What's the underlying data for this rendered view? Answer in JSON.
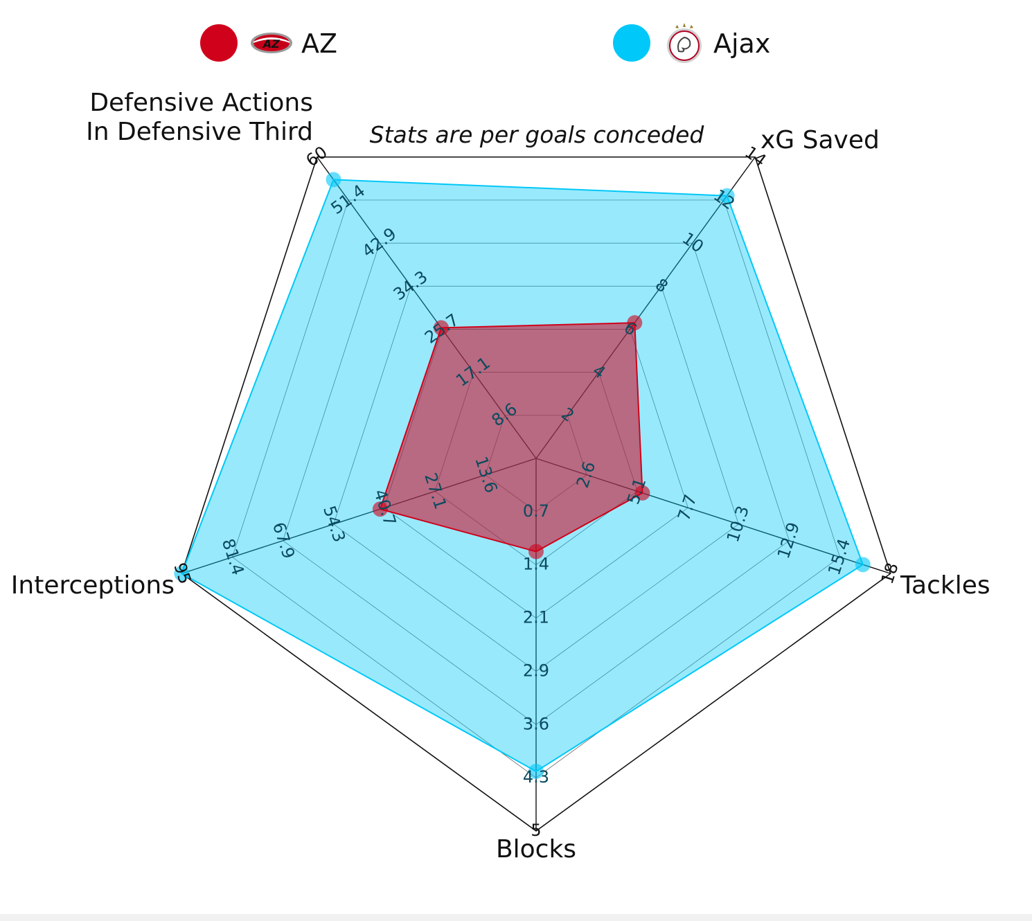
{
  "legend": {
    "team_a": {
      "name": "AZ",
      "color": "#d0021b",
      "icon": "az-alkmaar-logo-icon"
    },
    "team_b": {
      "name": "Ajax",
      "color": "#00c8f8",
      "icon": "ajax-logo-icon"
    }
  },
  "chart_data": {
    "type": "radar",
    "subtitle": "Stats are per goals conceded",
    "axes": [
      {
        "label_lines": [
          "Defensive Actions",
          "In Defensive Third"
        ],
        "max": 60,
        "ticks": [
          "8.6",
          "17.1",
          "25.7",
          "34.3",
          "42.9",
          "51.4",
          "60"
        ]
      },
      {
        "label_lines": [
          "xG Saved"
        ],
        "max": 14,
        "ticks": [
          "2",
          "4",
          "6",
          "8",
          "10",
          "12",
          "14"
        ]
      },
      {
        "label_lines": [
          "Tackles"
        ],
        "max": 18,
        "ticks": [
          "2.6",
          "5.1",
          "7.7",
          "10.3",
          "12.9",
          "15.4",
          "18"
        ]
      },
      {
        "label_lines": [
          "Blocks"
        ],
        "max": 5,
        "ticks": [
          "0.7",
          "1.4",
          "2.1",
          "2.9",
          "3.6",
          "4.3",
          "5"
        ]
      },
      {
        "label_lines": [
          "Interceptions"
        ],
        "max": 95,
        "ticks": [
          "13.6",
          "27.1",
          "40.7",
          "54.3",
          "67.9",
          "81.4",
          "95"
        ]
      }
    ],
    "series": [
      {
        "name": "Ajax",
        "color": "#00c8f8",
        "values": [
          55.5,
          12.2,
          16.6,
          4.2,
          95
        ]
      },
      {
        "name": "AZ",
        "color": "#d0021b",
        "values": [
          26.0,
          6.3,
          5.4,
          1.25,
          41.8
        ]
      }
    ],
    "grid": true
  }
}
